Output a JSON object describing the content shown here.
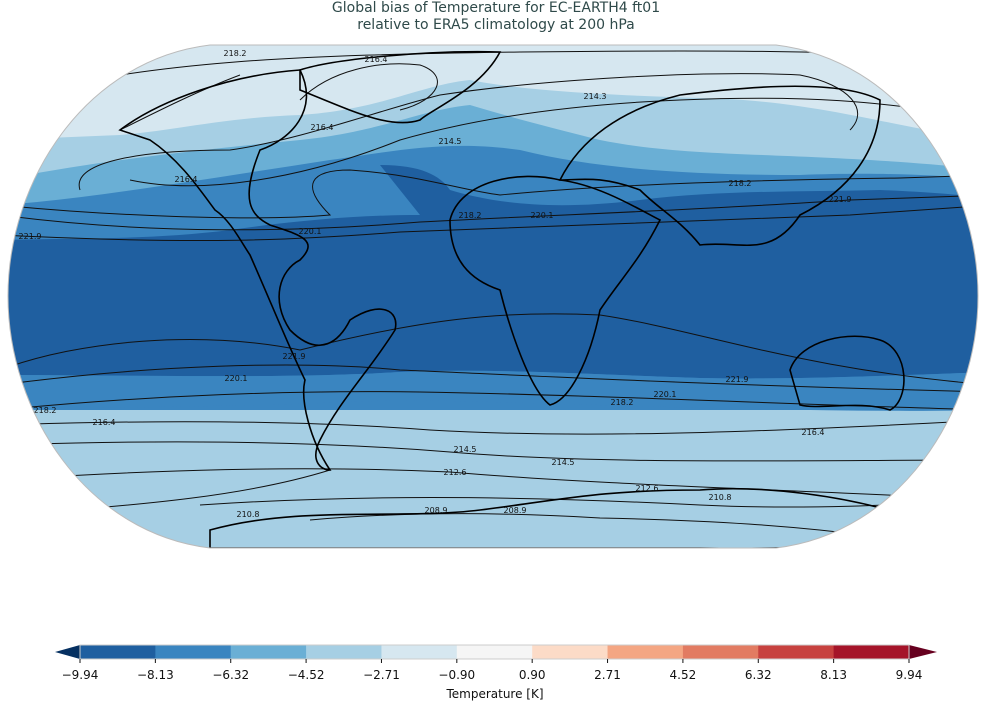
{
  "title": {
    "line1": "Global bias of Temperature for EC-EARTH4 ft01",
    "line2": "relative to ERA5 climatology at 200 hPa"
  },
  "map": {
    "projection": "Robinson",
    "band_colors": {
      "lt_-8.13": "#1f5fa0",
      "-8.13_-6.32": "#3a85c0",
      "-6.32_-4.52": "#6aafd5",
      "-4.52_-2.71": "#a6cfe4",
      "-2.71_-0.90": "#d6e7f0"
    },
    "contour_labels": [
      "218.2",
      "216.4",
      "214.5",
      "216.4",
      "216.4",
      "218.2",
      "220.1",
      "218.2",
      "220.1",
      "221.9",
      "221.9",
      "220.1",
      "221.9",
      "220.1",
      "218.2",
      "218.2",
      "216.4",
      "216.4",
      "214.5",
      "214.5",
      "212.6",
      "212.6",
      "210.8",
      "210.8",
      "208.9",
      "208.9",
      "214.3",
      "221.9"
    ]
  },
  "colorbar": {
    "label": "Temperature [K]",
    "ticks": [
      "−9.94",
      "−8.13",
      "−6.32",
      "−4.52",
      "−2.71",
      "−0.90",
      "0.90",
      "2.71",
      "4.52",
      "6.32",
      "8.13",
      "9.94"
    ],
    "colors": [
      "#1f5fa0",
      "#3a85c0",
      "#6aafd5",
      "#a6cfe4",
      "#d6e7f0",
      "#f5f5f5",
      "#fcdbc7",
      "#f4a683",
      "#e27b62",
      "#c7413f",
      "#a51429"
    ],
    "extend_low_color": "#053061",
    "extend_high_color": "#67001f"
  }
}
